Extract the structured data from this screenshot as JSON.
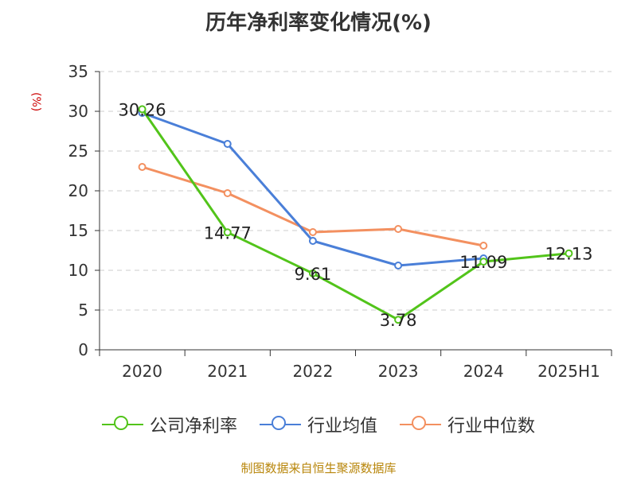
{
  "title": "历年净利率变化情况(%)",
  "unit": "(%)",
  "source": "制图数据来自恒生聚源数据库",
  "chart_data": {
    "type": "line",
    "title": "历年净利率变化情况(%)",
    "xlabel": "",
    "ylabel": "(%)",
    "categories": [
      "2020",
      "2021",
      "2022",
      "2023",
      "2024",
      "2025H1"
    ],
    "ylim": [
      0,
      35
    ],
    "yticks": [
      0,
      5,
      10,
      15,
      20,
      25,
      30,
      35
    ],
    "grid": true,
    "legend_position": "bottom",
    "series": [
      {
        "name": "公司净利率",
        "color": "#52c41a",
        "values": [
          30.26,
          14.77,
          9.61,
          3.78,
          11.09,
          12.13
        ],
        "labels": [
          "30.26",
          "14.77",
          "9.61",
          "3.78",
          "11.09",
          "12.13"
        ]
      },
      {
        "name": "行业均值",
        "color": "#4a7fd8",
        "values": [
          29.8,
          25.9,
          13.7,
          10.6,
          11.5,
          null
        ]
      },
      {
        "name": "行业中位数",
        "color": "#f39060",
        "values": [
          23.0,
          19.7,
          14.8,
          15.2,
          13.1,
          null
        ]
      }
    ]
  }
}
